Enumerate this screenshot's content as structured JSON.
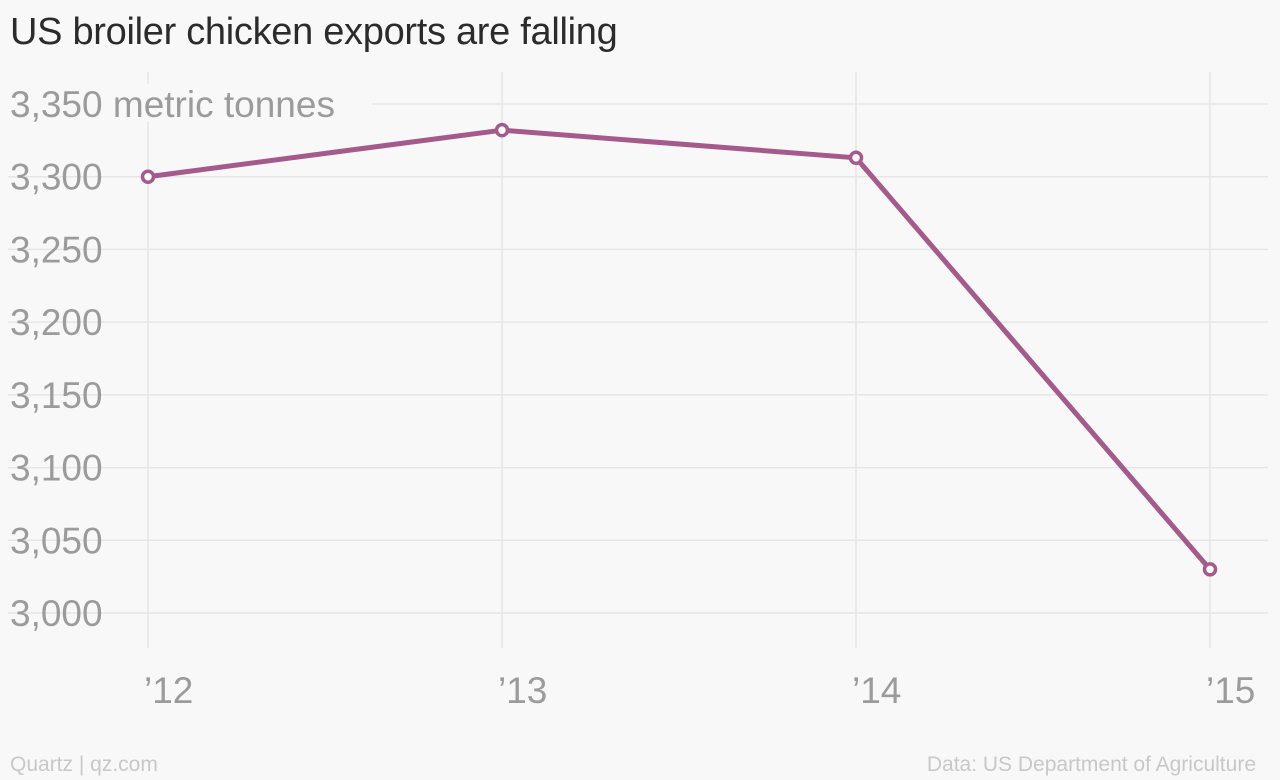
{
  "title": "US broiler chicken exports are falling",
  "footer": {
    "credit": "Quartz | qz.com",
    "source": "Data: US Department of Agriculture"
  },
  "colors": {
    "line": "#a55a8c",
    "grid": "#e6e6e6",
    "tick_text": "#9b9b9b",
    "background": "#f8f8f8"
  },
  "chart_data": {
    "type": "line",
    "title": "US broiler chicken exports are falling",
    "xlabel": "",
    "ylabel": "",
    "y_unit_label": "metric tonnes",
    "categories": [
      "’12",
      "’13",
      "’14",
      "’15"
    ],
    "y_ticks": [
      3000,
      3050,
      3100,
      3150,
      3200,
      3250,
      3300,
      3350
    ],
    "y_tick_labels": [
      "3,000",
      "3,050",
      "3,100",
      "3,150",
      "3,200",
      "3,250",
      "3,300",
      "3,350 metric tonnes"
    ],
    "ylim": [
      3000,
      3350
    ],
    "grid": true,
    "markers": "open-circle",
    "series": [
      {
        "values": [
          3300,
          3332,
          3313,
          3030
        ]
      }
    ]
  }
}
